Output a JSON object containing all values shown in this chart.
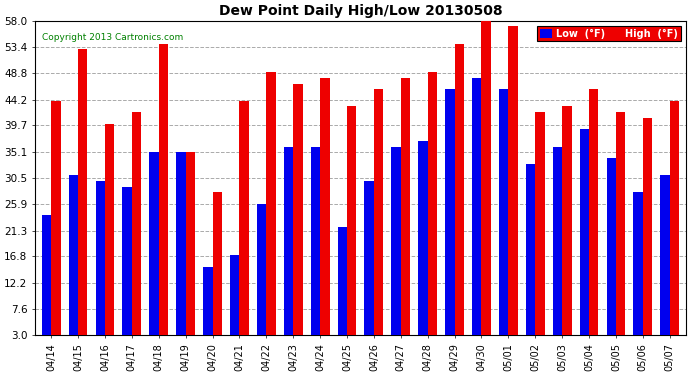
{
  "title": "Dew Point Daily High/Low 20130508",
  "copyright": "Copyright 2013 Cartronics.com",
  "dates": [
    "04/14",
    "04/15",
    "04/16",
    "04/17",
    "04/18",
    "04/19",
    "04/20",
    "04/21",
    "04/22",
    "04/23",
    "04/24",
    "04/25",
    "04/26",
    "04/27",
    "04/28",
    "04/29",
    "04/30",
    "05/01",
    "05/02",
    "05/03",
    "05/04",
    "05/05",
    "05/06",
    "05/07"
  ],
  "low_values": [
    24,
    31,
    30,
    29,
    35,
    35,
    15,
    17,
    26,
    36,
    36,
    22,
    30,
    36,
    37,
    46,
    48,
    46,
    33,
    36,
    39,
    34,
    28,
    31
  ],
  "high_values": [
    44,
    53,
    40,
    42,
    54,
    35,
    28,
    44,
    49,
    47,
    48,
    43,
    46,
    48,
    49,
    54,
    59,
    57,
    42,
    43,
    46,
    42,
    41,
    44
  ],
  "low_color": "#0000ee",
  "high_color": "#ee0000",
  "bg_color": "#ffffff",
  "plot_bg_color": "#ffffff",
  "grid_color": "#aaaaaa",
  "yticks": [
    3.0,
    7.6,
    12.2,
    16.8,
    21.3,
    25.9,
    30.5,
    35.1,
    39.7,
    44.2,
    48.8,
    53.4,
    58.0
  ],
  "ymin": 3.0,
  "ymax": 58.0,
  "legend_low_label": "Low  (°F)",
  "legend_high_label": "High  (°F)",
  "bar_bottom": 3.0,
  "figwidth": 6.9,
  "figheight": 3.75,
  "dpi": 100
}
